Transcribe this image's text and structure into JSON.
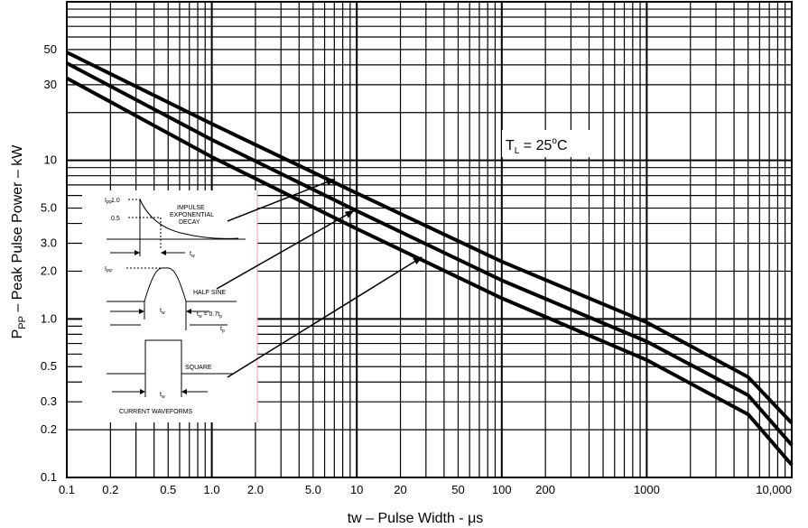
{
  "chart_data": {
    "type": "line",
    "title": "",
    "xlabel": "tw – Pulse Width - μs",
    "ylabel": "PPP – Peak Pulse Power – kW",
    "ylabel_main": "P",
    "ylabel_sub": "PP",
    "ylabel_rest": " – Peak Pulse Power – kW",
    "x_scale": "log",
    "y_scale": "log",
    "xlim": [
      0.1,
      10000
    ],
    "ylim": [
      0.1,
      100
    ],
    "grid": true,
    "legend": "none",
    "x_ticks": [
      {
        "value": 0.1,
        "label": "0.1"
      },
      {
        "value": 0.2,
        "label": "0.2"
      },
      {
        "value": 0.5,
        "label": "0.5"
      },
      {
        "value": 1,
        "label": "1.0"
      },
      {
        "value": 2,
        "label": "2.0"
      },
      {
        "value": 5,
        "label": "5.0"
      },
      {
        "value": 10,
        "label": "10"
      },
      {
        "value": 20,
        "label": "20"
      },
      {
        "value": 50,
        "label": "50"
      },
      {
        "value": 100,
        "label": "100"
      },
      {
        "value": 200,
        "label": "200"
      },
      {
        "value": 1000,
        "label": "1000"
      },
      {
        "value": 10000,
        "label": "10,000"
      }
    ],
    "y_ticks": [
      {
        "value": 0.1,
        "label": "0.1"
      },
      {
        "value": 0.2,
        "label": "0.2"
      },
      {
        "value": 0.3,
        "label": "0.3"
      },
      {
        "value": 0.5,
        "label": "0.5"
      },
      {
        "value": 1,
        "label": "1.0"
      },
      {
        "value": 2,
        "label": "2.0"
      },
      {
        "value": 3,
        "label": "3.0"
      },
      {
        "value": 5,
        "label": "5.0"
      },
      {
        "value": 10,
        "label": "10"
      },
      {
        "value": 30,
        "label": "30"
      },
      {
        "value": 50,
        "label": "50"
      }
    ],
    "series": [
      {
        "key": "impulse-exponential-decay",
        "x": [
          0.1,
          1,
          10,
          100,
          1000,
          5000,
          10000
        ],
        "y": [
          48,
          17,
          6.2,
          2.3,
          0.95,
          0.43,
          0.22
        ]
      },
      {
        "key": "half-sine",
        "x": [
          0.1,
          1,
          10,
          100,
          1000,
          5000,
          10000
        ],
        "y": [
          41,
          13.5,
          4.8,
          1.75,
          0.72,
          0.33,
          0.16
        ]
      },
      {
        "key": "square",
        "x": [
          0.1,
          1,
          10,
          100,
          1000,
          5000,
          10000
        ],
        "y": [
          33,
          10.5,
          3.7,
          1.35,
          0.55,
          0.25,
          0.12
        ]
      }
    ],
    "annotation": {
      "main": "T",
      "sub": "L",
      "mid": " = 25",
      "sup": "o",
      "end": "C"
    },
    "inset": {
      "impulse_ipp": "I",
      "impulse_ipp_sub": "PP",
      "impulse_level_1": "1.0",
      "impulse_level_05": "0.5",
      "impulse_label_1": "IMPULSE",
      "impulse_label_2": "EXPONENTIAL",
      "impulse_label_3": "DECAY",
      "impulse_tw": "t",
      "impulse_tw_sub": "w",
      "half_ipp": "I",
      "half_ipp_sub": "PP",
      "half_label": "HALF SINE",
      "half_tw": "t",
      "half_tw_sub": "w",
      "half_eq": "t",
      "half_eq_sub": "w",
      "half_eq_rest": " = 0.7t",
      "half_eq_sub2": "p",
      "half_tp": "t",
      "half_tp_sub": "p",
      "square_label": "SQUARE",
      "square_tw": "t",
      "square_tw_sub": "w",
      "caption": "CURRENT WAVEFORMS"
    },
    "arrows": [
      {
        "series": "impulse-exponential-decay",
        "x": 7,
        "y": 7.6
      },
      {
        "series": "half-sine",
        "x": 9.5,
        "y": 4.8
      },
      {
        "series": "square",
        "x": 28,
        "y": 2.45
      }
    ]
  }
}
